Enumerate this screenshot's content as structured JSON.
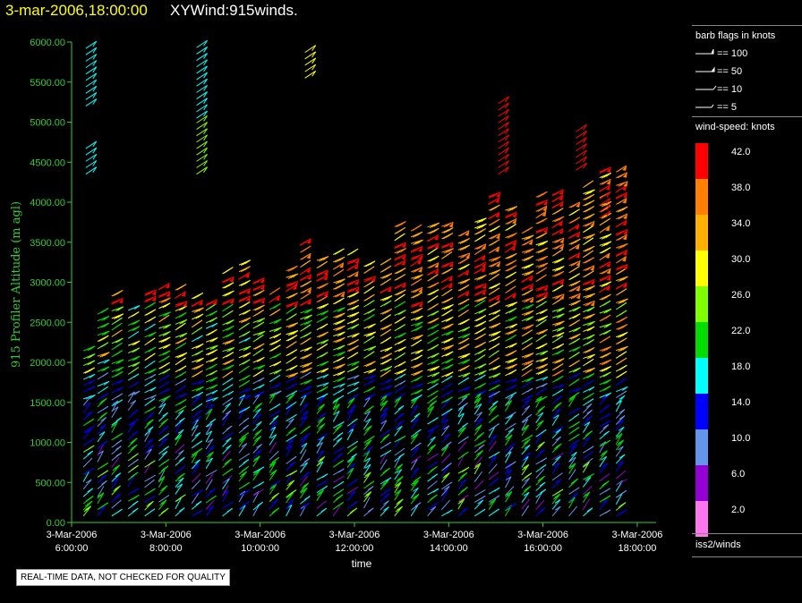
{
  "header": {
    "datetime": "3-mar-2006,18:00:00",
    "product": "XYWind:915winds."
  },
  "chart_data": {
    "type": "wind-barb time-height plot",
    "xlabel": "time",
    "ylabel": "915 Profiler Altitude (m agl)",
    "yticks": [
      "0.00",
      "500.00",
      "1000.00",
      "1500.00",
      "2000.00",
      "2500.00",
      "3000.00",
      "3500.00",
      "4000.00",
      "4500.00",
      "5000.00",
      "5500.00",
      "6000.00"
    ],
    "ylim": [
      0,
      6000
    ],
    "xticks": [
      {
        "date": "3-Mar-2006",
        "time": "6:00:00",
        "hour": 6
      },
      {
        "date": "3-Mar-2006",
        "time": "8:00:00",
        "hour": 8
      },
      {
        "date": "3-Mar-2006",
        "time": "10:00:00",
        "hour": 10
      },
      {
        "date": "3-Mar-2006",
        "time": "12:00:00",
        "hour": 12
      },
      {
        "date": "3-Mar-2006",
        "time": "14:00:00",
        "hour": 14
      },
      {
        "date": "3-Mar-2006",
        "time": "16:00:00",
        "hour": 16
      },
      {
        "date": "3-Mar-2006",
        "time": "18:00:00",
        "hour": 18
      }
    ],
    "xlim": [
      6,
      18.4
    ],
    "profile_times": [
      6.25,
      6.55,
      6.85,
      7.2,
      7.55,
      7.85,
      8.2,
      8.55,
      8.85,
      9.2,
      9.55,
      9.85,
      10.2,
      10.55,
      10.85,
      11.2,
      11.55,
      11.85,
      12.2,
      12.55,
      12.85,
      13.2,
      13.55,
      13.85,
      14.2,
      14.55,
      14.85,
      15.2,
      15.55,
      15.85,
      16.2,
      16.55,
      16.85,
      17.2,
      17.55
    ],
    "legend_colors": [
      "#ff0000",
      "#ff7f00",
      "#ffff00",
      "#7fff00",
      "#00ff00",
      "#00ffff",
      "#0000ff",
      "#6495ed",
      "#9400d3",
      "#ff77ff"
    ],
    "time_series_heights_note": "",
    "notice": "REAL-TIME DATA, NOT CHECKED FOR QUALITY"
  },
  "sidebar": {
    "barb_header": "barb flags in knots",
    "flags": [
      {
        "label": "== 100"
      },
      {
        "label": "== 50"
      },
      {
        "label": "== 10"
      },
      {
        "label": "== 5"
      }
    ],
    "speed_header": "wind-speed: knots",
    "colorbar": [
      {
        "label": "42.0",
        "color": "#ff0000"
      },
      {
        "label": "38.0",
        "color": "#ff7f00"
      },
      {
        "label": "34.0",
        "color": "#ffb000"
      },
      {
        "label": "30.0",
        "color": "#ffff00"
      },
      {
        "label": "26.0",
        "color": "#7fff00"
      },
      {
        "label": "22.0",
        "color": "#00dd00"
      },
      {
        "label": "18.0",
        "color": "#00ffff"
      },
      {
        "label": "14.0",
        "color": "#0000ff"
      },
      {
        "label": "10.0",
        "color": "#6495ed"
      },
      {
        "label": "6.0",
        "color": "#9400d3"
      },
      {
        "label": "2.0",
        "color": "#ff77ee"
      }
    ],
    "footer": "iss2/winds"
  }
}
